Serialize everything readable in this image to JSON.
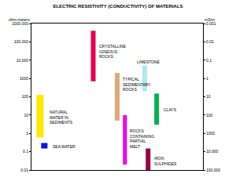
{
  "chart_data": {
    "type": "floating_bar",
    "title": "ELECTRIC RESISTIVITY (CONDUCTIVITY) OF MATERIALS",
    "y_label": "ohm-meters",
    "y2_label": "mS/m",
    "log": "y",
    "grid": false,
    "tick_labels": "y",
    "ylim": [
      0.01,
      1000000
    ],
    "yticks": [
      0.01,
      0.1,
      1,
      10,
      100,
      1000,
      {
        "value": 10000,
        "label": "10,000"
      },
      {
        "value": 100000,
        "label": "100,000"
      },
      {
        "value": 1000000,
        "label": "1000,000"
      }
    ],
    "y2lim": [
      100000,
      0.001
    ],
    "y2ticks": [
      0.001,
      0.01,
      0.1,
      1,
      10,
      100,
      1000,
      {
        "value": 10000,
        "label": "10,000"
      },
      {
        "value": 100000,
        "label": "100,000"
      }
    ],
    "series": [
      {
        "name": "NATURAL\nWATER IN\nSEDIMENTS",
        "color": "#ffe800",
        "low": 0.6,
        "high": 130
      },
      {
        "name": "SEA WATER",
        "color": "#0a14e6",
        "low": 0.15,
        "high": 0.3
      },
      {
        "name": "CRYSTALLINE\nIGNEOUS\nROCKS",
        "color": "#e8004f",
        "low": 700,
        "high": 400000
      },
      {
        "name": "TYPICAL\nSEDIMENTARY\nROCKS",
        "color": "#e0a878",
        "low": 5,
        "high": 2000
      },
      {
        "name": "ROCKS\nCONTAINING\nPARTIAL\nMELT",
        "color": "#ee00ee",
        "low": 0.02,
        "high": 10
      },
      {
        "name": "LIMESTONE",
        "color": "#aee8f0",
        "low": 200,
        "high": 5000
      },
      {
        "name": "IRON\nSULPHIDES",
        "color": "#990044",
        "low": 0.01,
        "high": 0.15
      },
      {
        "name": "CLAYS",
        "color": "#00b050",
        "low": 3,
        "high": 150
      }
    ]
  }
}
